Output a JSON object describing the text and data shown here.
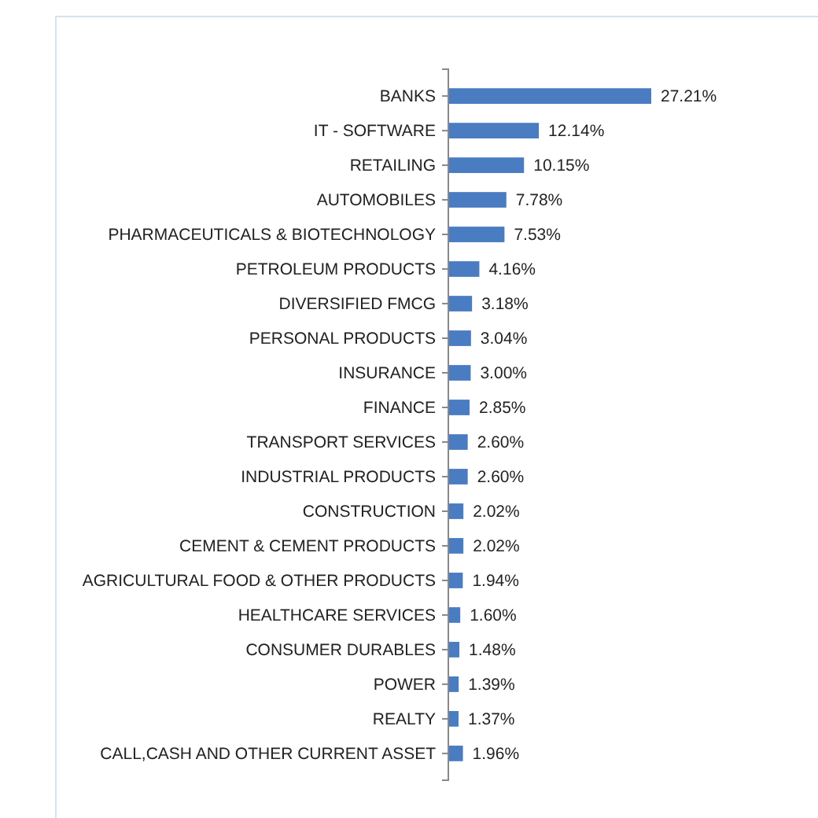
{
  "chart_data": {
    "type": "bar",
    "orientation": "horizontal",
    "color": "#4a7cc2",
    "categories": [
      "BANKS",
      "IT - SOFTWARE",
      "RETAILING",
      "AUTOMOBILES",
      "PHARMACEUTICALS & BIOTECHNOLOGY",
      "PETROLEUM PRODUCTS",
      "DIVERSIFIED FMCG",
      "PERSONAL PRODUCTS",
      "INSURANCE",
      "FINANCE",
      "TRANSPORT SERVICES",
      "INDUSTRIAL PRODUCTS",
      "CONSTRUCTION",
      "CEMENT & CEMENT PRODUCTS",
      "AGRICULTURAL FOOD & OTHER PRODUCTS",
      "HEALTHCARE SERVICES",
      "CONSUMER DURABLES",
      "POWER",
      "REALTY",
      "CALL,CASH AND OTHER CURRENT ASSET"
    ],
    "values": [
      27.21,
      12.14,
      10.15,
      7.78,
      7.53,
      4.16,
      3.18,
      3.04,
      3.0,
      2.85,
      2.6,
      2.6,
      2.02,
      2.02,
      1.94,
      1.6,
      1.48,
      1.39,
      1.37,
      1.96
    ],
    "value_labels": [
      "27.21%",
      "12.14%",
      "10.15%",
      "7.78%",
      "7.53%",
      "4.16%",
      "3.18%",
      "3.04%",
      "3.00%",
      "2.85%",
      "2.60%",
      "2.60%",
      "2.02%",
      "2.02%",
      "1.94%",
      "1.60%",
      "1.48%",
      "1.39%",
      "1.37%",
      "1.96%"
    ],
    "tick_labels": "y"
  }
}
